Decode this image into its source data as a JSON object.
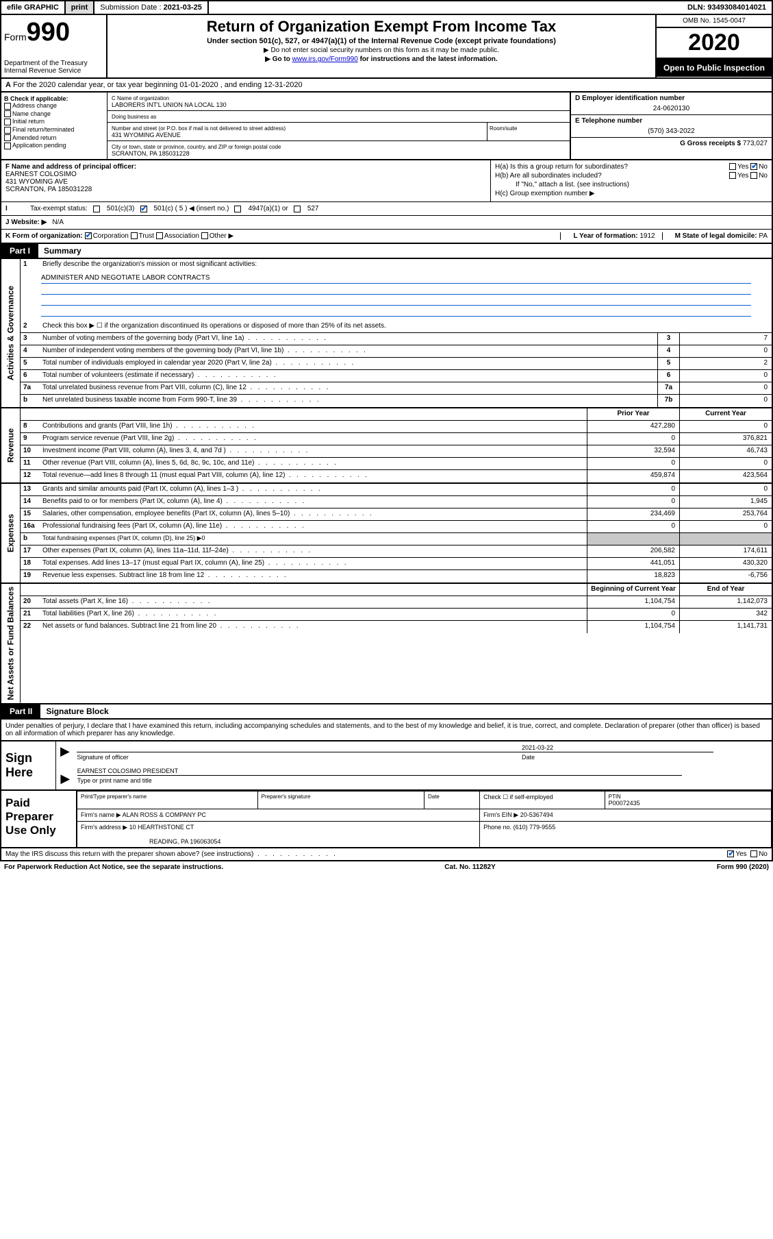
{
  "topbar": {
    "efile": "efile GRAPHIC",
    "print": "print",
    "submission_label": "Submission Date :",
    "submission_date": "2021-03-25",
    "dln_label": "DLN:",
    "dln": "93493084014021"
  },
  "header": {
    "form_label": "Form",
    "form_num": "990",
    "dept": "Department of the Treasury Internal Revenue Service",
    "title": "Return of Organization Exempt From Income Tax",
    "subtitle": "Under section 501(c), 527, or 4947(a)(1) of the Internal Revenue Code (except private foundations)",
    "note1": "▶ Do not enter social security numbers on this form as it may be made public.",
    "note2_prefix": "▶ Go to ",
    "note2_link": "www.irs.gov/Form990",
    "note2_suffix": " for instructions and the latest information.",
    "omb": "OMB No. 1545-0047",
    "year": "2020",
    "inspection": "Open to Public Inspection"
  },
  "row_a": {
    "text": "For the 2020 calendar year, or tax year beginning 01-01-2020  , and ending 12-31-2020",
    "prefix": "A"
  },
  "section_b": {
    "b_label": "B Check if applicable:",
    "items": [
      "Address change",
      "Name change",
      "Initial return",
      "Final return/terminated",
      "Amended return",
      "Application pending"
    ],
    "c_name_label": "C Name of organization",
    "c_name": "LABORERS INT'L UNION NA LOCAL 130",
    "dba_label": "Doing business as",
    "dba": "",
    "street_label": "Number and street (or P.O. box if mail is not delivered to street address)",
    "room_label": "Room/suite",
    "street": "431 WYOMING AVENUE",
    "city_label": "City or town, state or province, country, and ZIP or foreign postal code",
    "city": "SCRANTON, PA  185031228",
    "d_label": "D Employer identification number",
    "d_ein": "24-0620130",
    "e_label": "E Telephone number",
    "e_phone": "(570) 343-2022",
    "g_label": "G Gross receipts $",
    "g_amount": "773,027"
  },
  "section_fg": {
    "f_label": "F Name and address of principal officer:",
    "f_name": "EARNEST COLOSIMO",
    "f_addr1": "431 WYOMING AVE",
    "f_addr2": "SCRANTON, PA  185031228",
    "ha_label": "H(a)  Is this a group return for subordinates?",
    "hb_label": "H(b)  Are all subordinates included?",
    "h_note": "If \"No,\" attach a list. (see instructions)",
    "hc_label": "H(c)  Group exemption number ▶",
    "yes": "Yes",
    "no": "No"
  },
  "tax_status": {
    "label": "Tax-exempt status:",
    "opt1": "501(c)(3)",
    "opt2": "501(c) ( 5 ) ◀ (insert no.)",
    "opt3": "4947(a)(1) or",
    "opt4": "527"
  },
  "website": {
    "label": "J  Website: ▶",
    "value": "N/A"
  },
  "kform": {
    "k_label": "K Form of organization:",
    "opts": [
      "Corporation",
      "Trust",
      "Association",
      "Other ▶"
    ],
    "l_label": "L Year of formation:",
    "l_val": "1912",
    "m_label": "M State of legal domicile:",
    "m_val": "PA"
  },
  "part1": {
    "label": "Part I",
    "title": "Summary",
    "q1": "Briefly describe the organization's mission or most significant activities:",
    "mission": "ADMINISTER AND NEGOTIATE LABOR CONTRACTS",
    "q2": "Check this box ▶ ☐  if the organization discontinued its operations or disposed of more than 25% of its net assets.",
    "sideA": "Activities & Governance",
    "sideR": "Revenue",
    "sideE": "Expenses",
    "sideN": "Net Assets or Fund Balances",
    "rows_gov": [
      {
        "n": "3",
        "d": "Number of voting members of the governing body (Part VI, line 1a)",
        "box": "3",
        "v": "7"
      },
      {
        "n": "4",
        "d": "Number of independent voting members of the governing body (Part VI, line 1b)",
        "box": "4",
        "v": "0"
      },
      {
        "n": "5",
        "d": "Total number of individuals employed in calendar year 2020 (Part V, line 2a)",
        "box": "5",
        "v": "2"
      },
      {
        "n": "6",
        "d": "Total number of volunteers (estimate if necessary)",
        "box": "6",
        "v": "0"
      },
      {
        "n": "7a",
        "d": "Total unrelated business revenue from Part VIII, column (C), line 12",
        "box": "7a",
        "v": "0"
      },
      {
        "n": "b",
        "d": "Net unrelated business taxable income from Form 990-T, line 39",
        "box": "7b",
        "v": "0"
      }
    ],
    "hdr_prior": "Prior Year",
    "hdr_current": "Current Year",
    "rows_rev": [
      {
        "n": "8",
        "d": "Contributions and grants (Part VIII, line 1h)",
        "p": "427,280",
        "c": "0"
      },
      {
        "n": "9",
        "d": "Program service revenue (Part VIII, line 2g)",
        "p": "0",
        "c": "376,821"
      },
      {
        "n": "10",
        "d": "Investment income (Part VIII, column (A), lines 3, 4, and 7d )",
        "p": "32,594",
        "c": "46,743"
      },
      {
        "n": "11",
        "d": "Other revenue (Part VIII, column (A), lines 5, 6d, 8c, 9c, 10c, and 11e)",
        "p": "0",
        "c": "0"
      },
      {
        "n": "12",
        "d": "Total revenue—add lines 8 through 11 (must equal Part VIII, column (A), line 12)",
        "p": "459,874",
        "c": "423,564"
      }
    ],
    "rows_exp": [
      {
        "n": "13",
        "d": "Grants and similar amounts paid (Part IX, column (A), lines 1–3 )",
        "p": "0",
        "c": "0"
      },
      {
        "n": "14",
        "d": "Benefits paid to or for members (Part IX, column (A), line 4)",
        "p": "0",
        "c": "1,945"
      },
      {
        "n": "15",
        "d": "Salaries, other compensation, employee benefits (Part IX, column (A), lines 5–10)",
        "p": "234,469",
        "c": "253,764"
      },
      {
        "n": "16a",
        "d": "Professional fundraising fees (Part IX, column (A), line 11e)",
        "p": "0",
        "c": "0"
      },
      {
        "n": "b",
        "d": "Total fundraising expenses (Part IX, column (D), line 25) ▶0",
        "p": "",
        "c": "",
        "grey": true,
        "small": true
      },
      {
        "n": "17",
        "d": "Other expenses (Part IX, column (A), lines 11a–11d, 11f–24e)",
        "p": "206,582",
        "c": "174,611"
      },
      {
        "n": "18",
        "d": "Total expenses. Add lines 13–17 (must equal Part IX, column (A), line 25)",
        "p": "441,051",
        "c": "430,320"
      },
      {
        "n": "19",
        "d": "Revenue less expenses. Subtract line 18 from line 12",
        "p": "18,823",
        "c": "-6,756"
      }
    ],
    "hdr_begin": "Beginning of Current Year",
    "hdr_end": "End of Year",
    "rows_net": [
      {
        "n": "20",
        "d": "Total assets (Part X, line 16)",
        "p": "1,104,754",
        "c": "1,142,073"
      },
      {
        "n": "21",
        "d": "Total liabilities (Part X, line 26)",
        "p": "0",
        "c": "342"
      },
      {
        "n": "22",
        "d": "Net assets or fund balances. Subtract line 21 from line 20",
        "p": "1,104,754",
        "c": "1,141,731"
      }
    ]
  },
  "part2": {
    "label": "Part II",
    "title": "Signature Block",
    "declare": "Under penalties of perjury, I declare that I have examined this return, including accompanying schedules and statements, and to the best of my knowledge and belief, it is true, correct, and complete. Declaration of preparer (other than officer) is based on all information of which preparer has any knowledge."
  },
  "sign": {
    "label": "Sign Here",
    "sig_of_officer": "Signature of officer",
    "date_label": "Date",
    "date": "2021-03-22",
    "name": "EARNEST COLOSIMO PRESIDENT",
    "name_label": "Type or print name and title"
  },
  "paid": {
    "label": "Paid Preparer Use Only",
    "print_label": "Print/Type preparer's name",
    "prep_sig_label": "Preparer's signature",
    "date_label": "Date",
    "check_label": "Check ☐ if self-employed",
    "ptin_label": "PTIN",
    "ptin": "P00072435",
    "firm_name_label": "Firm's name   ▶",
    "firm_name": "ALAN ROSS & COMPANY PC",
    "firm_ein_label": "Firm's EIN ▶",
    "firm_ein": "20-5367494",
    "firm_addr_label": "Firm's address ▶",
    "firm_addr1": "10 HEARTHSTONE CT",
    "firm_addr2": "READING, PA  196063054",
    "phone_label": "Phone no.",
    "phone": "(610) 779-9555"
  },
  "irs_discuss": {
    "text": "May the IRS discuss this return with the preparer shown above? (see instructions)",
    "yes": "Yes",
    "no": "No"
  },
  "footer": {
    "left": "For Paperwork Reduction Act Notice, see the separate instructions.",
    "mid": "Cat. No. 11282Y",
    "right": "Form 990 (2020)"
  },
  "colors": {
    "black": "#000000",
    "link_blue": "#0000cc",
    "check_blue": "#0b5fd1",
    "grey_btn": "#dcdcdc",
    "grey_fill": "#c8c8c8"
  }
}
